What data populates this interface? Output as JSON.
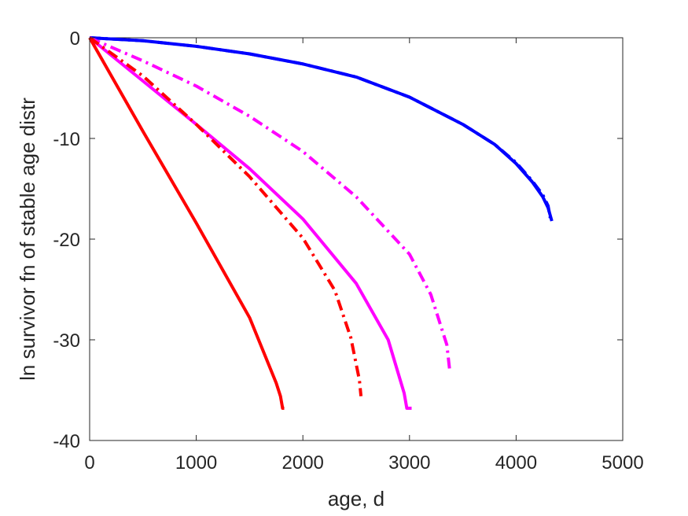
{
  "chart_data": {
    "type": "line",
    "title": "",
    "xlabel": "age, d",
    "ylabel": "ln survivor fn of stable age distr",
    "xlim": [
      0,
      5000
    ],
    "ylim": [
      -40,
      0
    ],
    "xticks": [
      "0",
      "1000",
      "2000",
      "3000",
      "4000",
      "5000"
    ],
    "yticks": [
      "0",
      "-10",
      "-20",
      "-30",
      "-40"
    ],
    "grid": false,
    "legend": "none",
    "series": [
      {
        "color": "#0000ff",
        "style": "solid",
        "x": [
          0,
          500,
          1000,
          1500,
          2000,
          2500,
          3000,
          3500,
          3800,
          4000,
          4150,
          4250,
          4300,
          4335
        ],
        "y": [
          0,
          -0.3,
          -0.85,
          -1.6,
          -2.6,
          -3.9,
          -5.9,
          -8.6,
          -10.6,
          -12.5,
          -14.3,
          -15.8,
          -16.9,
          -18.2
        ]
      },
      {
        "color": "#0000ff",
        "style": "dashdot",
        "x": [
          0,
          500,
          1000,
          1500,
          2000,
          2500,
          3000,
          3500,
          3800,
          4000,
          4150,
          4250,
          4300,
          4320
        ],
        "y": [
          0,
          -0.3,
          -0.85,
          -1.6,
          -2.6,
          -3.9,
          -5.9,
          -8.6,
          -10.6,
          -12.4,
          -14.2,
          -15.6,
          -16.7,
          -17.9
        ]
      },
      {
        "color": "#ff00ff",
        "style": "dashdot",
        "x": [
          0,
          500,
          1000,
          1500,
          2000,
          2500,
          3000,
          3200,
          3350,
          3380
        ],
        "y": [
          0,
          -2.3,
          -4.8,
          -7.8,
          -11.3,
          -15.8,
          -21.5,
          -25.5,
          -30.5,
          -33.3
        ]
      },
      {
        "color": "#ff00ff",
        "style": "solid",
        "x": [
          0,
          500,
          1000,
          1500,
          2000,
          2500,
          2800,
          2950,
          2975,
          3020
        ],
        "y": [
          0,
          -4.3,
          -8.6,
          -13.0,
          -18.0,
          -24.4,
          -30.0,
          -35.3,
          -36.8,
          -36.8
        ]
      },
      {
        "color": "#ff0000",
        "style": "dashdot",
        "x": [
          0,
          500,
          1000,
          1500,
          2000,
          2300,
          2450,
          2530,
          2545
        ],
        "y": [
          0,
          -3.8,
          -8.6,
          -13.8,
          -19.9,
          -25.1,
          -29.8,
          -34.0,
          -35.6
        ]
      },
      {
        "color": "#ff0000",
        "style": "solid",
        "x": [
          0,
          500,
          1000,
          1500,
          1750,
          1790,
          1810,
          1825
        ],
        "y": [
          0,
          -9.3,
          -18.4,
          -27.8,
          -34.3,
          -35.6,
          -36.8,
          -36.8
        ]
      }
    ]
  }
}
